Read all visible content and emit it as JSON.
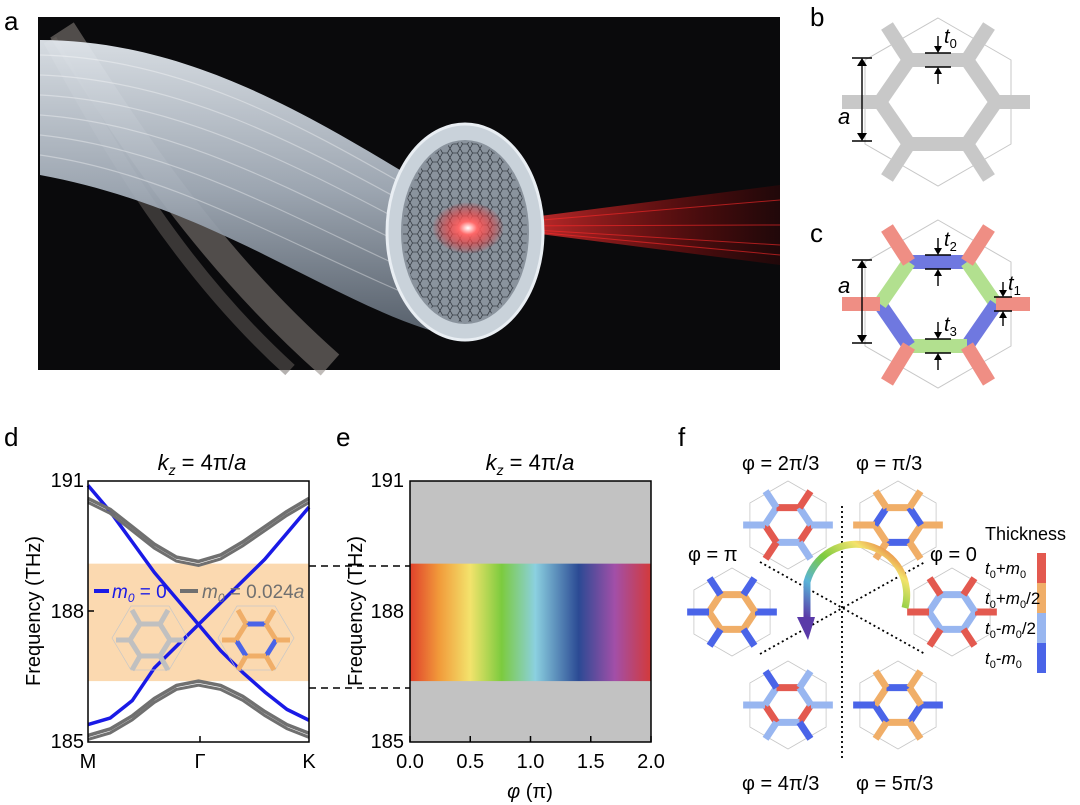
{
  "panel_labels": {
    "a": "a",
    "b": "b",
    "c": "c",
    "d": "d",
    "e": "e",
    "f": "f"
  },
  "panel_b": {
    "t": "t",
    "t_sub": "0",
    "a": "a",
    "hex_color": "#c8c8c8"
  },
  "panel_c": {
    "a": "a",
    "t1": "t",
    "t1_sub": "1",
    "t2": "t",
    "t2_sub": "2",
    "t3": "t",
    "t3_sub": "3",
    "colors": {
      "red": "#ef8e84",
      "green": "#b2e08f",
      "blue": "#6f78e0"
    }
  },
  "colors": {
    "band_blue": "#1a1ae6",
    "band_gray": "#707070",
    "gap_fill": "#fbd9b0",
    "bg_gray": "#c2c2c2"
  },
  "chart_data": [
    {
      "type": "line",
      "panel": "d",
      "title_main": "k",
      "title_sub": "z",
      "title_eq": " = 4π/",
      "title_a": "a",
      "ylabel": "Frequency (THz)",
      "xticks": [
        "M",
        "Γ",
        "K"
      ],
      "yticks": [
        "191",
        "188",
        "185"
      ],
      "ylim": [
        185,
        191
      ],
      "gap_shading": [
        186.4,
        189.1
      ],
      "legend": [
        {
          "name_main": "m",
          "name_sub": "0",
          "name_rest": " = 0",
          "color": "#1a1ae6"
        },
        {
          "name_main": "m",
          "name_sub": "0",
          "name_rest": " = 0.024",
          "name_a": "a",
          "color": "#707070"
        }
      ],
      "series": [
        {
          "name": "m0 = 0",
          "x": [
            0,
            0.1,
            0.2,
            0.3,
            0.4,
            0.5,
            0.6,
            0.7,
            0.8,
            0.9,
            1.0
          ],
          "values": [
            185.4,
            185.55,
            185.95,
            186.7,
            187.2,
            187.7,
            188.2,
            188.7,
            189.2,
            189.8,
            190.4
          ]
        },
        {
          "name": "m0 = 0",
          "x": [
            0,
            0.1,
            0.2,
            0.3,
            0.4,
            0.5,
            0.6,
            0.7,
            0.8,
            0.9,
            1.0
          ],
          "values": [
            190.9,
            190.3,
            189.6,
            188.9,
            188.3,
            187.7,
            187.1,
            186.6,
            186.15,
            185.75,
            185.5
          ]
        },
        {
          "name": "m0 = 0.024a",
          "x": [
            0,
            0.1,
            0.2,
            0.3,
            0.4,
            0.5,
            0.6,
            0.7,
            0.8,
            0.9,
            1.0
          ],
          "values": [
            190.6,
            190.35,
            189.95,
            189.55,
            189.25,
            189.15,
            189.3,
            189.6,
            189.95,
            190.3,
            190.6
          ]
        },
        {
          "name": "m0 = 0.024a",
          "x": [
            0,
            0.1,
            0.2,
            0.3,
            0.4,
            0.5,
            0.6,
            0.7,
            0.8,
            0.9,
            1.0
          ],
          "values": [
            185.15,
            185.3,
            185.6,
            186.0,
            186.3,
            186.4,
            186.3,
            186.05,
            185.7,
            185.4,
            185.2
          ]
        }
      ]
    },
    {
      "type": "area",
      "panel": "e",
      "title_main": "k",
      "title_sub": "z",
      "title_eq": " = 4π/",
      "title_a": "a",
      "ylabel": "Frequency (THz)",
      "xlabel_main": "φ",
      "xlabel_rest": " (π)",
      "xticks": [
        "0.0",
        "0.5",
        "1.0",
        "1.5",
        "2.0"
      ],
      "yticks": [
        "191",
        "188",
        "185"
      ],
      "xlim": [
        0,
        2
      ],
      "ylim": [
        185,
        191
      ],
      "gap_band": [
        186.4,
        189.1
      ],
      "colorscale": [
        "#e0402b",
        "#f19a3a",
        "#f3e36c",
        "#7ccb3e",
        "#8bd0e0",
        "#2b4a94",
        "#a24fa8",
        "#d33a3a"
      ]
    }
  ],
  "panel_f": {
    "phase_labels": [
      "φ = 2π/3",
      "φ = π/3",
      "φ = π",
      "φ = 0",
      "φ = 4π/3",
      "φ = 5π/3"
    ],
    "legend_title": "Thickness",
    "legend_items": [
      {
        "main": "t",
        "sub": "0",
        "rest1": "+",
        "m": "m",
        "msub": "0",
        "rest2": "",
        "color": "#e3594f"
      },
      {
        "main": "t",
        "sub": "0",
        "rest1": "+",
        "m": "m",
        "msub": "0",
        "rest2": "/2",
        "color": "#f0ae68"
      },
      {
        "main": "t",
        "sub": "0",
        "rest1": "-",
        "m": "m",
        "msub": "0",
        "rest2": "/2",
        "color": "#98b6f0"
      },
      {
        "main": "t",
        "sub": "0",
        "rest1": "-",
        "m": "m",
        "msub": "0",
        "rest2": "",
        "color": "#4a64e8"
      }
    ],
    "colors": {
      "red": "#e3594f",
      "orange": "#f0ae68",
      "lightblue": "#98b6f0",
      "blue": "#4a64e8"
    }
  }
}
